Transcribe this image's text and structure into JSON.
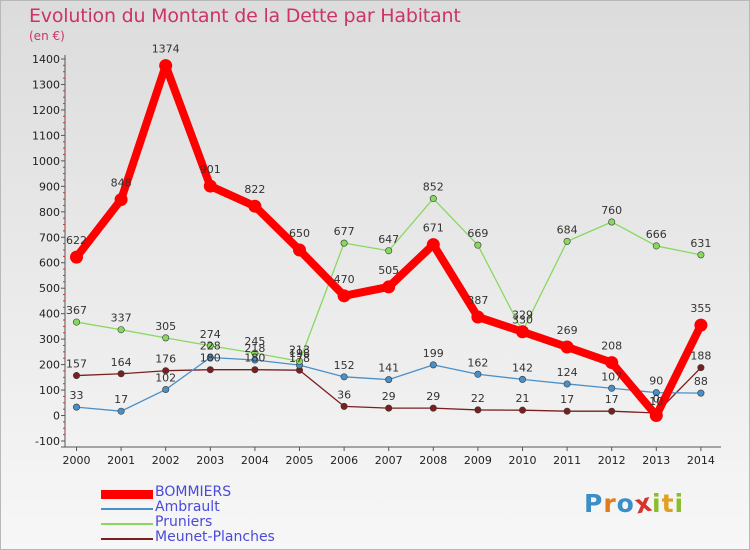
{
  "chart_data": {
    "type": "line",
    "title": "Evolution du Montant de la Dette par Habitant",
    "unit_label": "(en €)",
    "categories": [
      "2000",
      "2001",
      "2002",
      "2003",
      "2004",
      "2005",
      "2006",
      "2007",
      "2008",
      "2009",
      "2010",
      "2011",
      "2012",
      "2013",
      "2014"
    ],
    "ylim": [
      -100,
      1400
    ],
    "yticks": [
      -100,
      0,
      100,
      200,
      300,
      400,
      500,
      600,
      700,
      800,
      900,
      1000,
      1100,
      1200,
      1300,
      1400
    ],
    "ytick_labels": [
      "-100",
      "0",
      "100",
      "200",
      "300",
      "400",
      "500",
      "600",
      "700",
      "800",
      "900",
      "1000",
      "1100",
      "1200",
      "1300",
      "1400"
    ],
    "grid": false,
    "legend_position": "bottom-left",
    "series": [
      {
        "name": "BOMMIERS",
        "color": "#ff0000",
        "emphasis": "thick",
        "values": [
          622,
          848,
          1374,
          901,
          822,
          650,
          470,
          505,
          671,
          387,
          329,
          269,
          208,
          0,
          355
        ],
        "labels": [
          "622",
          "848",
          "1374",
          "901",
          "822",
          "650",
          "470",
          "505",
          "671",
          "387",
          "329",
          "269",
          "208",
          "0",
          "355"
        ]
      },
      {
        "name": "Ambrault",
        "color": "#4a90c8",
        "values": [
          33,
          17,
          102,
          228,
          218,
          198,
          152,
          141,
          199,
          162,
          142,
          124,
          107,
          90,
          88
        ],
        "labels": [
          "33",
          "17",
          "102",
          "228",
          "218",
          "198",
          "152",
          "141",
          "199",
          "162",
          "142",
          "124",
          "107",
          "90",
          "88"
        ]
      },
      {
        "name": "Pruniers",
        "color": "#88d860",
        "values": [
          367,
          337,
          305,
          274,
          245,
          213,
          677,
          647,
          852,
          669,
          330,
          684,
          760,
          666,
          631
        ],
        "labels": [
          "367",
          "337",
          "305",
          "274",
          "245",
          "213",
          "677",
          "647",
          "852",
          "669",
          "330",
          "684",
          "760",
          "666",
          "631"
        ]
      },
      {
        "name": "Meunet-Planches",
        "color": "#7a1f1f",
        "values": [
          157,
          164,
          176,
          180,
          180,
          178,
          36,
          29,
          29,
          22,
          21,
          17,
          17,
          10,
          188
        ],
        "labels": [
          "157",
          "164",
          "176",
          "180",
          "180",
          "178",
          "36",
          "29",
          "29",
          "22",
          "21",
          "17",
          "17",
          "10",
          "188"
        ]
      }
    ]
  },
  "branding": {
    "logo_letters": [
      "P",
      "r",
      "o",
      "x",
      "i",
      "t",
      "i"
    ],
    "logo_colors": [
      "#3b8ec6",
      "#e07a1d",
      "#3b8ec6",
      "#d6332b",
      "#8bbf2a",
      "#e0a020",
      "#8bbf2a"
    ]
  }
}
